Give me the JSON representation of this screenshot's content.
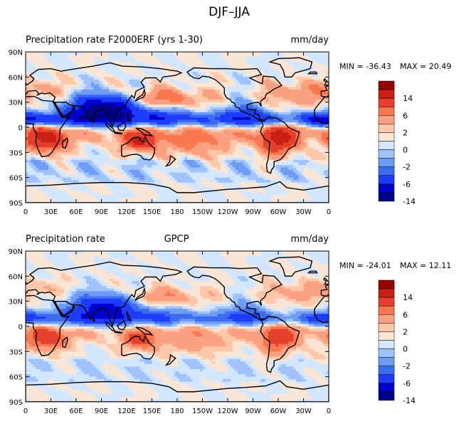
{
  "figure_title": "DJF–JJA",
  "colors": {
    "land": "#ffffff",
    "coast": "#000000",
    "palette": [
      "#00008b",
      "#0000cd",
      "#1e3cff",
      "#3c6cf0",
      "#6e9bf5",
      "#a0c3ff",
      "#d2e6ff",
      "#fae6d7",
      "#fdc8aa",
      "#fca082",
      "#fa7850",
      "#e6402d",
      "#c81e14",
      "#960000"
    ]
  },
  "chart_data": [
    {
      "type": "heatmap",
      "title": "Precipitation rate  F2000ERF (yrs 1-30)",
      "units": "mm/day",
      "min_label": "MIN = -36.43",
      "max_label": "MAX =  20.49",
      "xticks": [
        "0",
        "30E",
        "60E",
        "90E",
        "120E",
        "150E",
        "180",
        "150W",
        "120W",
        "90W",
        "60W",
        "30W",
        "0"
      ],
      "yticks": [
        "90N",
        "60N",
        "30N",
        "0",
        "30S",
        "60S",
        "90S"
      ],
      "colorbar_labels": [
        "14",
        "6",
        "2",
        "0",
        "-2",
        "-6",
        "-14"
      ],
      "xlim": [
        0,
        360
      ],
      "ylim": [
        -90,
        90
      ]
    },
    {
      "type": "heatmap",
      "title": "Precipitation rate",
      "subtitle": "GPCP",
      "units": "mm/day",
      "min_label": "MIN = -24.01",
      "max_label": "MAX =  12.11",
      "xticks": [
        "0",
        "30E",
        "60E",
        "90E",
        "120E",
        "150E",
        "180",
        "150W",
        "120W",
        "90W",
        "60W",
        "30W",
        "0"
      ],
      "yticks": [
        "90N",
        "60N",
        "30N",
        "0",
        "30S",
        "60S",
        "90S"
      ],
      "colorbar_labels": [
        "14",
        "6",
        "2",
        "0",
        "-2",
        "-6",
        "-14"
      ],
      "xlim": [
        0,
        360
      ],
      "ylim": [
        -90,
        90
      ]
    }
  ]
}
